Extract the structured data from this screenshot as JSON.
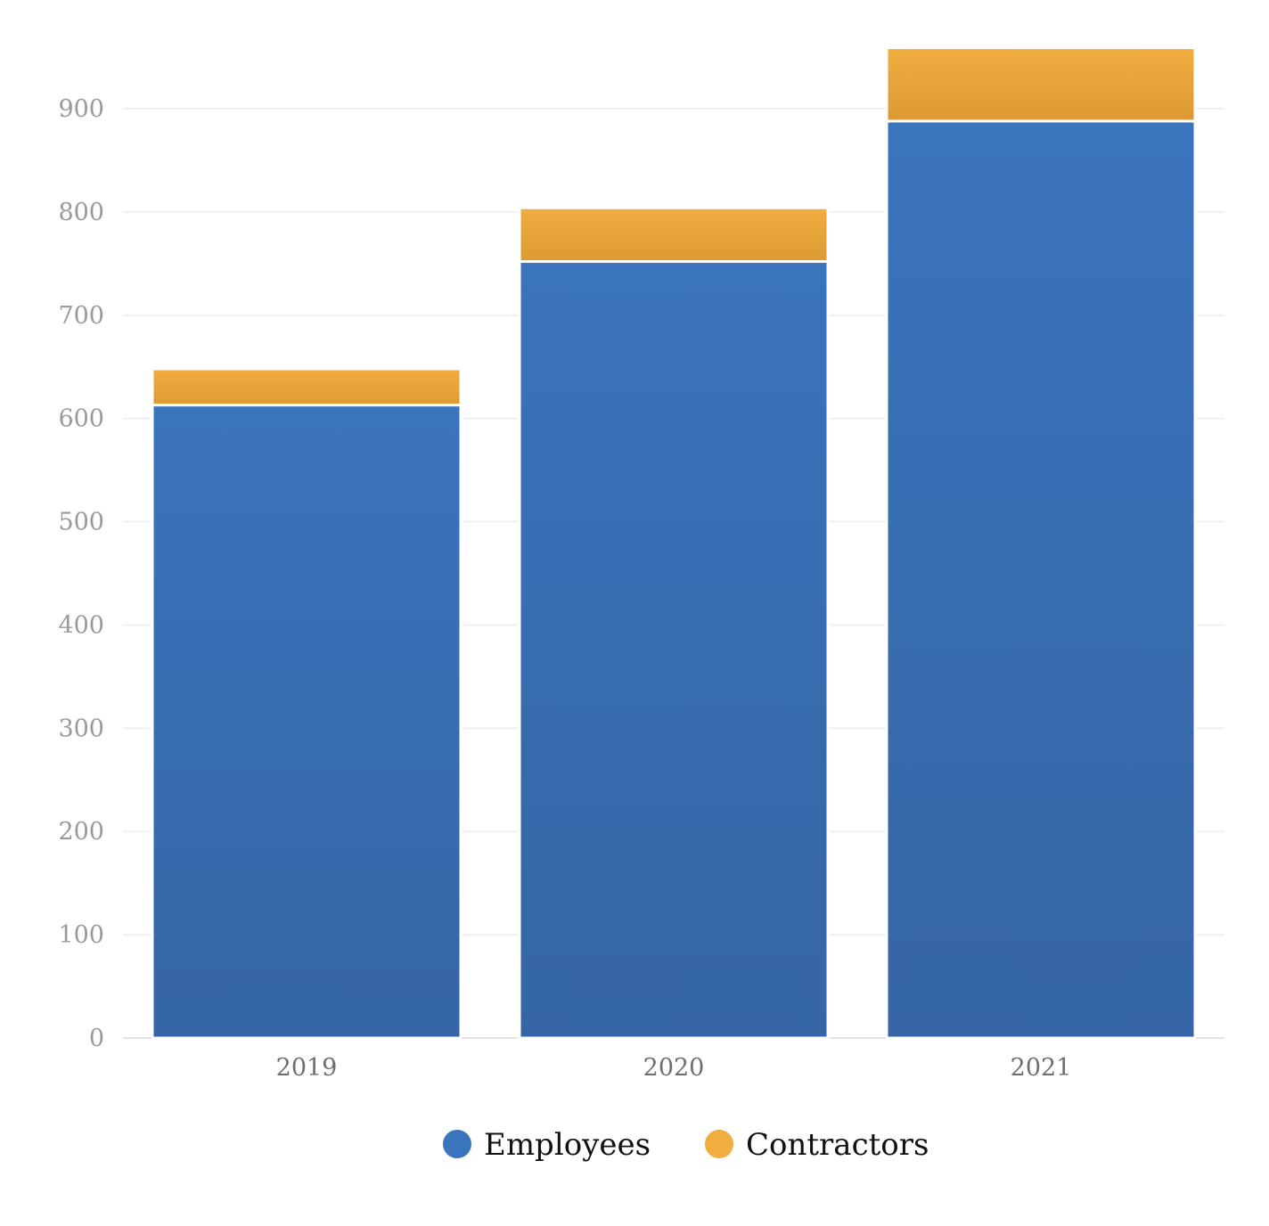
{
  "chart_data": {
    "type": "bar",
    "stacked": true,
    "categories": [
      "2019",
      "2020",
      "2021"
    ],
    "series": [
      {
        "name": "Employees",
        "values": [
          613,
          752,
          888
        ],
        "color_top": "#3a74bd",
        "color_bottom": "#3565a4"
      },
      {
        "name": "Contractors",
        "values": [
          35,
          52,
          71
        ],
        "color_top": "#f1ad40",
        "color_bottom": "#dd9a34"
      }
    ],
    "yticks": [
      "0",
      "100",
      "200",
      "300",
      "400",
      "500",
      "600",
      "700",
      "800",
      "900"
    ],
    "ylim": [
      0,
      1000
    ],
    "grid": true,
    "legend_position": "bottom-center",
    "title": "",
    "xlabel": "",
    "ylabel": ""
  }
}
